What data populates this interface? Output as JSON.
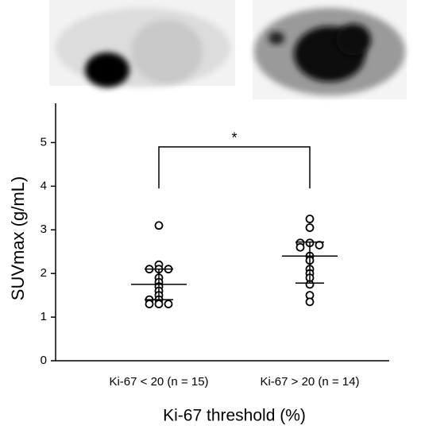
{
  "chart_data": {
    "type": "dot",
    "ylabel": "SUVmax (g/mL)",
    "xlabel": "Ki-67 threshold (%)",
    "categories": [
      "Ki-67 < 20 (n = 15)",
      "Ki-67 > 20 (n = 14)"
    ],
    "groups": [
      {
        "values": [
          3.1,
          2.2,
          2.1,
          2.1,
          2.1,
          1.9,
          1.8,
          1.7,
          1.6,
          1.5,
          1.4,
          1.4,
          1.3,
          1.3,
          1.3
        ],
        "mean": 1.75,
        "upper": 2.1,
        "lower": 1.4
      },
      {
        "values": [
          3.25,
          3.05,
          2.7,
          2.7,
          2.65,
          2.6,
          2.4,
          2.3,
          2.1,
          2.0,
          1.9,
          1.75,
          1.5,
          1.35
        ],
        "mean": 2.4,
        "upper": 2.72,
        "lower": 1.78
      }
    ],
    "significance": {
      "label": "*",
      "top": 4.9,
      "bottom": 3.95
    },
    "ylim": [
      0,
      5.9
    ],
    "yticks": [
      0,
      1,
      2,
      3,
      4,
      5
    ]
  }
}
